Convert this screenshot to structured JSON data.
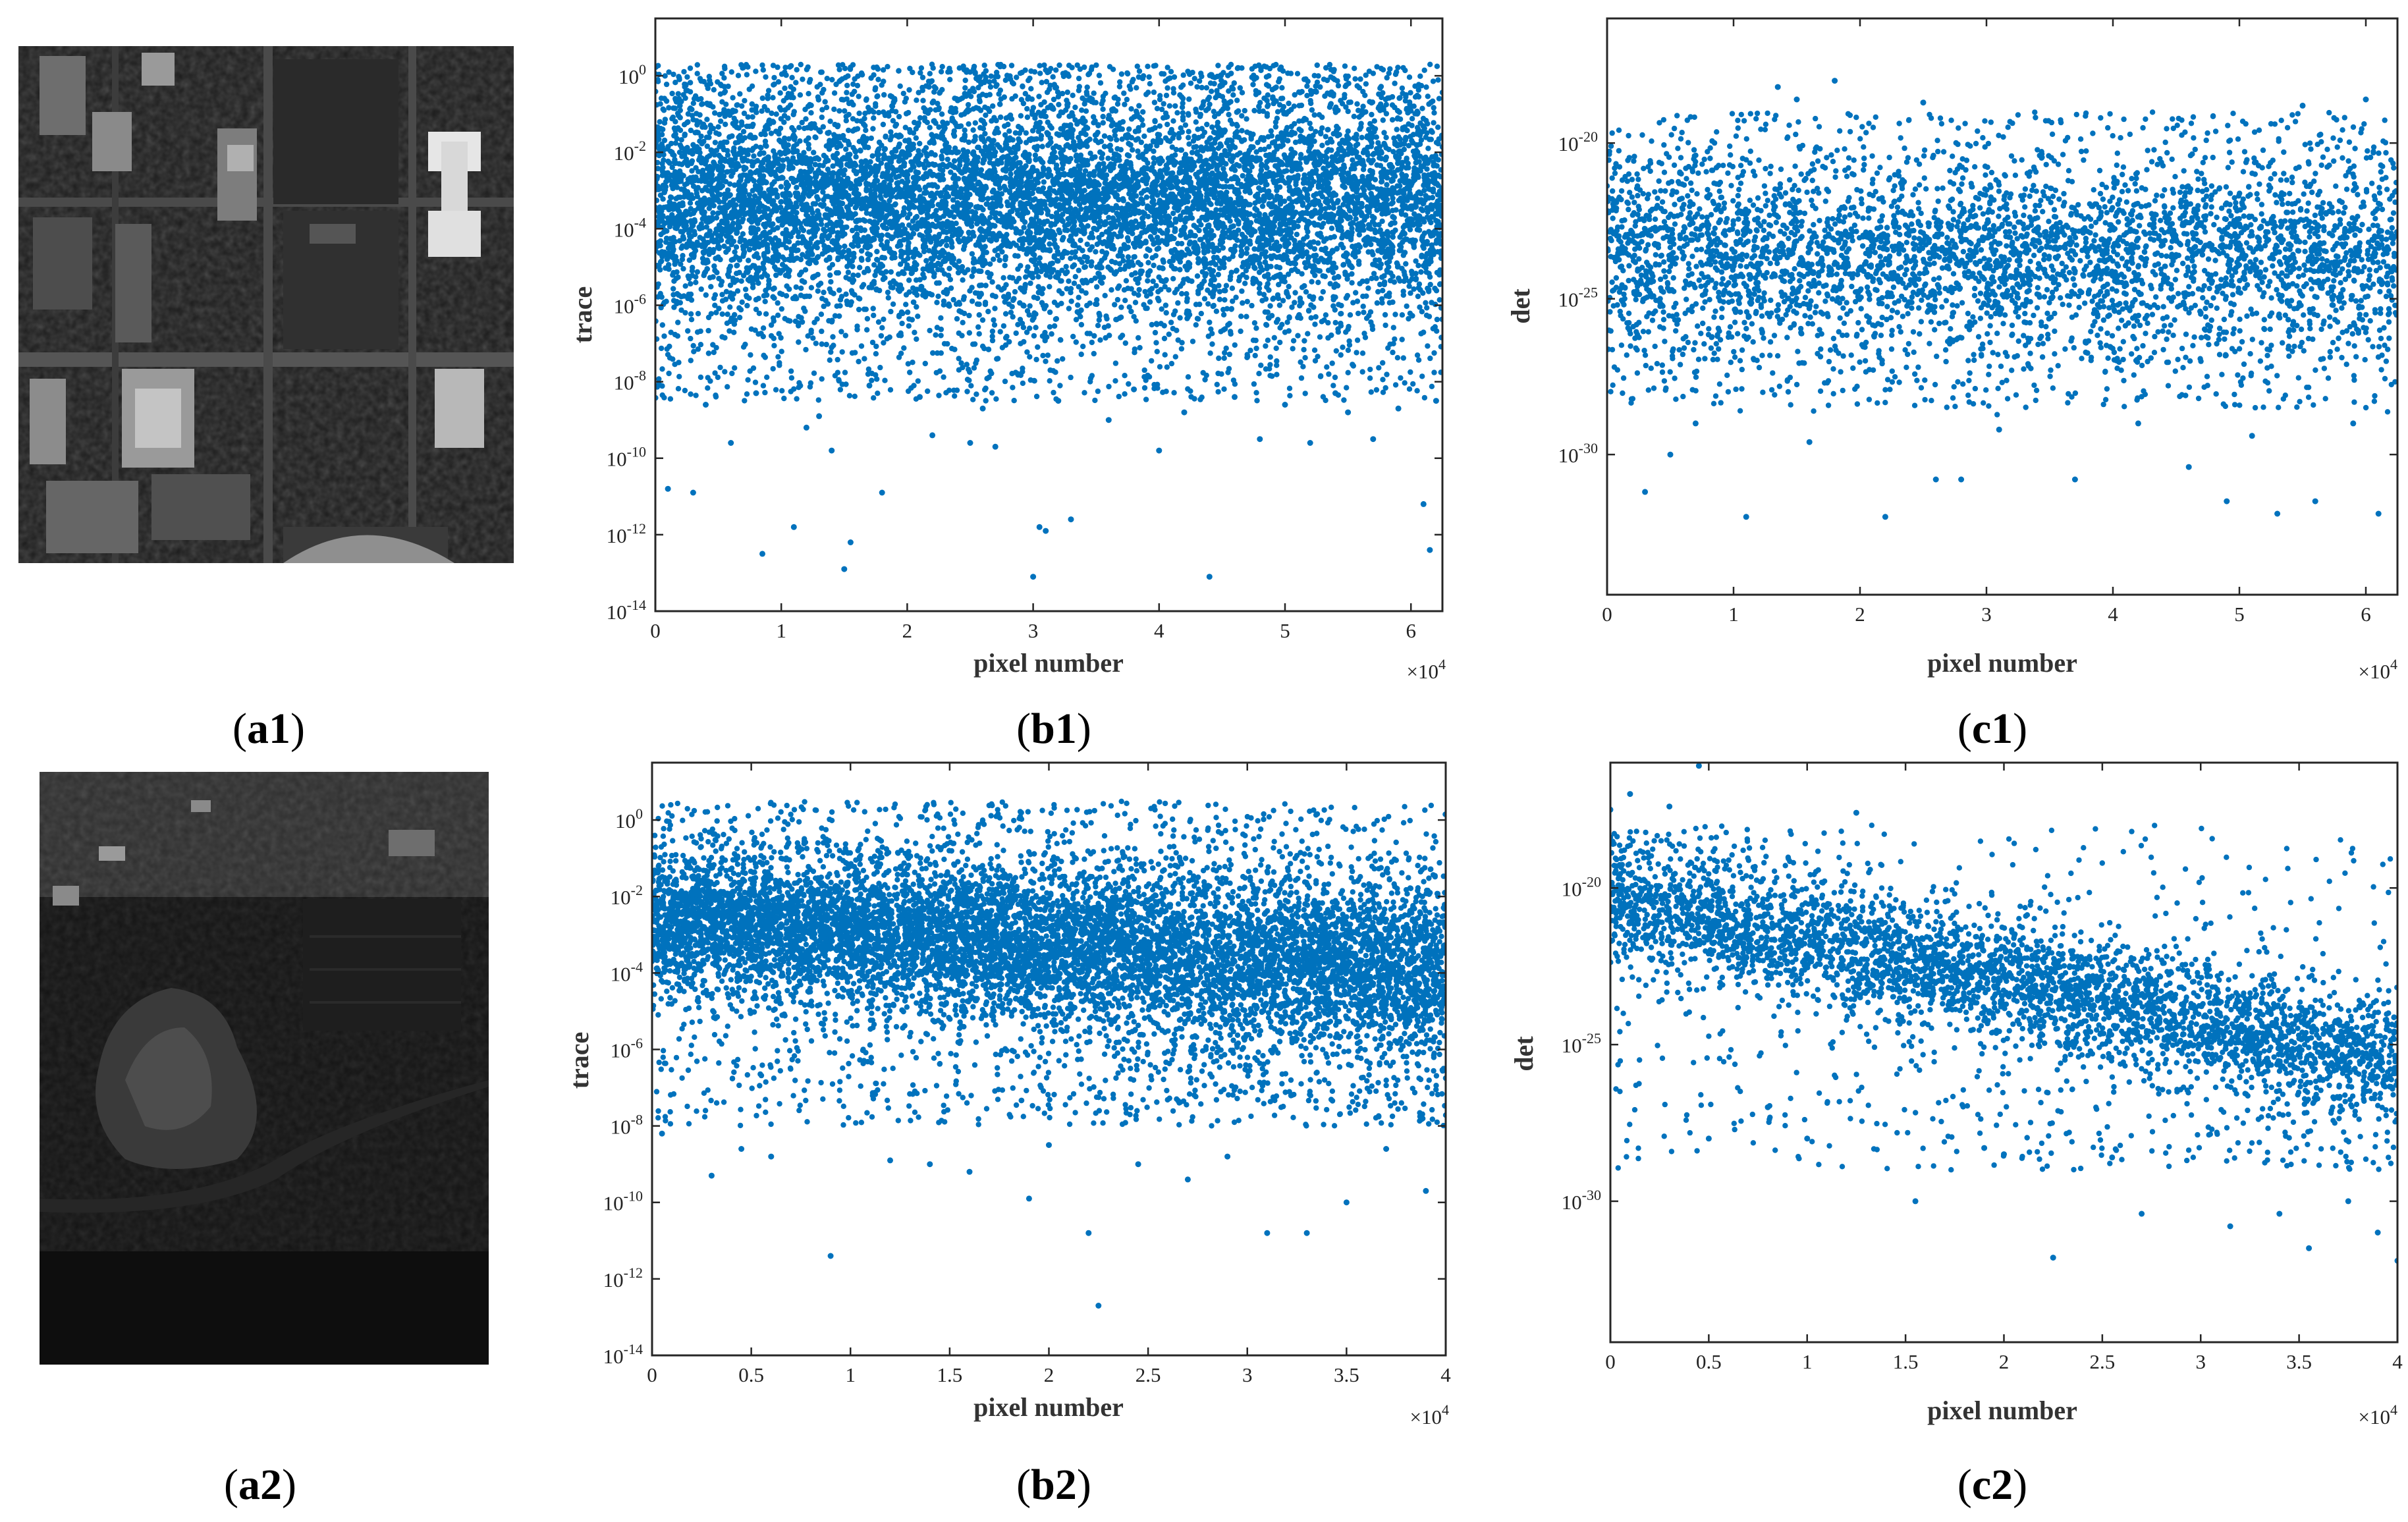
{
  "colors": {
    "marker": "#0072bd",
    "axis": "#262626"
  },
  "panels": [
    {
      "id": "a1",
      "caption": {
        "prefix": "(",
        "label": "a1",
        "suffix": ")"
      },
      "image": "hyperspectral-urban-grayscale-image"
    },
    {
      "id": "a2",
      "caption": {
        "prefix": "(",
        "label": "a2",
        "suffix": ")"
      },
      "image": "hyperspectral-coastal-grayscale-image"
    }
  ],
  "chart_data": [
    {
      "id": "b1",
      "caption": {
        "prefix": "(",
        "label": "b1",
        "suffix": ")"
      },
      "type": "scatter",
      "title": "",
      "xlabel": "pixel number",
      "ylabel": "trace",
      "x_multiplier_text": "×10",
      "x_multiplier_exp": "4",
      "xlim": [
        0,
        6.25
      ],
      "yscale": "log",
      "ylim_exp": [
        -14,
        1.5
      ],
      "xticks": [
        "0",
        "1",
        "2",
        "3",
        "4",
        "5",
        "6"
      ],
      "xtick_values": [
        0,
        1,
        2,
        3,
        4,
        5,
        6
      ],
      "yticks": [
        {
          "base": "10",
          "exp": "0",
          "value": 0
        },
        {
          "base": "10",
          "exp": "-2",
          "value": -2
        },
        {
          "base": "10",
          "exp": "-4",
          "value": -4
        },
        {
          "base": "10",
          "exp": "-6",
          "value": -6
        },
        {
          "base": "10",
          "exp": "-8",
          "value": -8
        },
        {
          "base": "10",
          "exp": "-10",
          "value": -10
        },
        {
          "base": "10",
          "exp": "-12",
          "value": -12
        },
        {
          "base": "10",
          "exp": "-14",
          "value": -14
        }
      ],
      "grid": false,
      "series": [
        {
          "points_x_1e4": [
            0.1,
            0.3,
            0.6,
            0.85,
            1.1,
            1.2,
            1.4,
            1.5,
            1.55,
            1.8,
            2.2,
            2.5,
            2.7,
            3.0,
            3.05,
            3.1,
            3.3,
            3.6,
            4.0,
            4.4,
            4.8,
            5.2,
            5.5,
            5.7,
            6.1,
            6.15,
            0.4,
            0.8,
            1.3,
            1.7,
            2.1,
            2.6,
            3.2,
            3.8,
            4.2,
            4.6,
            5.0,
            5.4,
            5.9,
            6.2
          ],
          "points_log10_y": [
            -10.8,
            -10.9,
            -9.6,
            -12.5,
            -11.8,
            -9.2,
            -9.8,
            -12.9,
            -12.2,
            -10.9,
            -9.4,
            -9.6,
            -9.7,
            -13.1,
            -11.8,
            -11.9,
            -11.6,
            -9.0,
            -9.8,
            -13.1,
            -9.5,
            -9.6,
            -8.8,
            -9.5,
            -11.2,
            -12.4,
            -8.6,
            -8.3,
            -8.9,
            -8.1,
            -8.4,
            -8.7,
            -8.5,
            -8.2,
            -8.8,
            -8.4,
            -8.6,
            -8.3,
            -8.7,
            -8.5
          ],
          "band": {
            "x_range_1e4": [
              0,
              6.25
            ],
            "dense_log10_range": [
              -5.5,
              -1.0
            ],
            "upper_log10_max": 0.3,
            "lower_log10_min": -8.5
          }
        }
      ]
    },
    {
      "id": "c1",
      "caption": {
        "prefix": "(",
        "label": "c1",
        "suffix": ")"
      },
      "type": "scatter",
      "title": "",
      "xlabel": "pixel number",
      "ylabel": "det",
      "x_multiplier_text": "×10",
      "x_multiplier_exp": "4",
      "xlim": [
        0,
        6.25
      ],
      "yscale": "log",
      "ylim_exp": [
        -34.5,
        -16
      ],
      "xticks": [
        "0",
        "1",
        "2",
        "3",
        "4",
        "5",
        "6"
      ],
      "xtick_values": [
        0,
        1,
        2,
        3,
        4,
        5,
        6
      ],
      "yticks": [
        {
          "base": "10",
          "exp": "-20",
          "value": -20
        },
        {
          "base": "10",
          "exp": "-25",
          "value": -25
        },
        {
          "base": "10",
          "exp": "-30",
          "value": -30
        }
      ],
      "grid": false,
      "series": [
        {
          "points_x_1e4": [
            0.3,
            0.5,
            1.1,
            2.2,
            2.6,
            2.8,
            3.7,
            4.6,
            4.9,
            5.3,
            5.6,
            6.1,
            0.7,
            1.6,
            3.1,
            4.2,
            5.1,
            5.9,
            1.35,
            1.5,
            1.8,
            2.5,
            5.5,
            6.0
          ],
          "points_log10_y": [
            -31.2,
            -30.0,
            -32.0,
            -32.0,
            -30.8,
            -30.8,
            -30.8,
            -30.4,
            -31.5,
            -31.9,
            -31.5,
            -31.9,
            -29.0,
            -29.6,
            -29.2,
            -29.0,
            -29.4,
            -29.0,
            -18.2,
            -18.6,
            -18.0,
            -18.7,
            -18.8,
            -18.6
          ],
          "band": {
            "x_range_1e4": [
              0,
              6.25
            ],
            "dense_log10_range": [
              -26.0,
              -21.0
            ],
            "upper_log10_max": -19.0,
            "lower_log10_min": -28.5
          }
        }
      ]
    },
    {
      "id": "b2",
      "caption": {
        "prefix": "(",
        "label": "b2",
        "suffix": ")"
      },
      "type": "scatter",
      "title": "",
      "xlabel": "pixel number",
      "ylabel": "trace",
      "x_multiplier_text": "×10",
      "x_multiplier_exp": "4",
      "xlim": [
        0,
        4
      ],
      "yscale": "log",
      "ylim_exp": [
        -14,
        1.5
      ],
      "xticks": [
        "0",
        "0.5",
        "1",
        "1.5",
        "2",
        "2.5",
        "3",
        "3.5",
        "4"
      ],
      "xtick_values": [
        0,
        0.5,
        1,
        1.5,
        2,
        2.5,
        3,
        3.5,
        4
      ],
      "yticks": [
        {
          "base": "10",
          "exp": "0",
          "value": 0
        },
        {
          "base": "10",
          "exp": "-2",
          "value": -2
        },
        {
          "base": "10",
          "exp": "-4",
          "value": -4
        },
        {
          "base": "10",
          "exp": "-6",
          "value": -6
        },
        {
          "base": "10",
          "exp": "-8",
          "value": -8
        },
        {
          "base": "10",
          "exp": "-10",
          "value": -10
        },
        {
          "base": "10",
          "exp": "-12",
          "value": -12
        },
        {
          "base": "10",
          "exp": "-14",
          "value": -14
        }
      ],
      "grid": false,
      "series": [
        {
          "points_x_1e4": [
            0.05,
            0.45,
            0.9,
            1.9,
            2.25,
            2.45,
            2.2,
            3.1,
            3.3,
            3.5,
            3.9,
            0.3,
            1.2,
            1.6,
            2.7,
            3.7,
            0.6,
            1.4,
            2.0,
            2.9
          ],
          "points_log10_y": [
            -8.2,
            -8.6,
            -11.4,
            -9.9,
            -12.7,
            -9.0,
            -10.8,
            -10.8,
            -10.8,
            -10.0,
            -9.7,
            -9.3,
            -8.9,
            -9.2,
            -9.4,
            -8.6,
            -8.8,
            -9.0,
            -8.5,
            -8.8
          ],
          "band": {
            "x_range_1e4": [
              0,
              4
            ],
            "dense_log10_range_start": [
              -4.0,
              -1.2
            ],
            "dense_log10_range_end": [
              -5.8,
              -2.0
            ],
            "upper_log10_max": 0.5,
            "lower_log10_min": -8.0
          }
        }
      ]
    },
    {
      "id": "c2",
      "caption": {
        "prefix": "(",
        "label": "c2",
        "suffix": ")"
      },
      "type": "scatter",
      "title": "",
      "xlabel": "pixel number",
      "ylabel": "det",
      "x_multiplier_text": "×10",
      "x_multiplier_exp": "4",
      "xlim": [
        0,
        4
      ],
      "yscale": "log",
      "ylim_exp": [
        -34.5,
        -16
      ],
      "xticks": [
        "0",
        "0.5",
        "1",
        "1.5",
        "2",
        "2.5",
        "3",
        "3.5",
        "4"
      ],
      "xtick_values": [
        0,
        0.5,
        1,
        1.5,
        2,
        2.5,
        3,
        3.5,
        4
      ],
      "yticks": [
        {
          "base": "10",
          "exp": "-20",
          "value": -20
        },
        {
          "base": "10",
          "exp": "-25",
          "value": -25
        },
        {
          "base": "10",
          "exp": "-30",
          "value": -30
        }
      ],
      "grid": false,
      "series": [
        {
          "points_x_1e4": [
            0.45,
            0.5,
            1.0,
            1.55,
            2.0,
            2.25,
            2.55,
            2.7,
            3.15,
            3.4,
            3.55,
            3.75,
            3.9,
            4.0,
            0.0,
            0.1,
            0.3,
            0.8,
            1.9,
            1.25
          ],
          "points_log10_y": [
            -16.1,
            -28.0,
            -28.0,
            -30.0,
            -28.5,
            -31.8,
            -28.6,
            -30.4,
            -30.8,
            -30.4,
            -31.5,
            -30.0,
            -31.0,
            -31.9,
            -17.5,
            -17.0,
            -17.4,
            -27.0,
            -28.3,
            -17.6
          ],
          "band": {
            "x_range_1e4": [
              0,
              4
            ],
            "dense_log10_range_start": [
              -22.0,
              -18.8
            ],
            "dense_log10_range_end": [
              -27.0,
              -24.0
            ],
            "upper_log10_max": -18.0,
            "lower_log10_min": -29.0
          }
        }
      ]
    }
  ]
}
